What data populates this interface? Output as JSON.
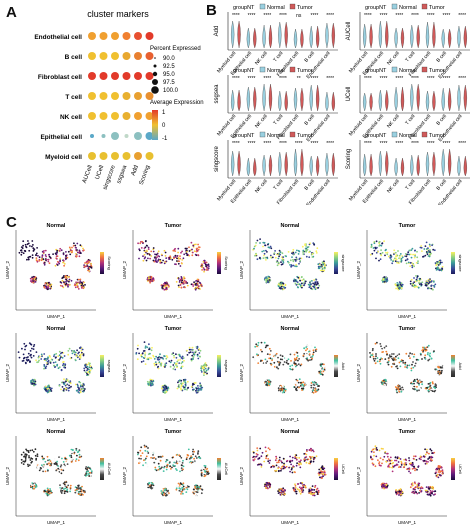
{
  "panels": {
    "A": {
      "letter": "A",
      "title": "cluster markers",
      "rows": [
        "Endothelial cell",
        "B cell",
        "Fibroblast cell",
        "T cell",
        "NK cell",
        "Epithelial cell",
        "Myeloid cell"
      ],
      "cols": [
        "AUCell",
        "UCell",
        "singscore",
        "ssgsea",
        "Add",
        "Scoring"
      ],
      "legend_pct": {
        "title": "Percent Expressed",
        "values": [
          "90.0",
          "92.5",
          "95.0",
          "97.5",
          "100.0"
        ]
      },
      "legend_expr": {
        "title": "Average Expression",
        "ticks": [
          "1",
          "0",
          "-1"
        ]
      }
    },
    "B": {
      "letter": "B",
      "legend_title": "groupNT",
      "legend_items": [
        "Normal",
        "Tumor"
      ],
      "plots": [
        {
          "ylabel": "Add",
          "sig": [
            "****",
            "****",
            "****",
            "****",
            "ns",
            "****"
          ]
        },
        {
          "ylabel": "AUCell",
          "sig": [
            "****",
            "****",
            "****",
            "****",
            "****",
            "****"
          ]
        },
        {
          "ylabel": "ssgsea",
          "sig": [
            "****",
            "****",
            "****",
            "****",
            "**",
            "****"
          ]
        },
        {
          "ylabel": "UCell",
          "sig": [
            "****",
            "****",
            "****",
            "****",
            "****",
            "****"
          ]
        },
        {
          "ylabel": "singscore",
          "sig": [
            "****",
            "****",
            "****",
            "****",
            "****",
            "****"
          ]
        },
        {
          "ylabel": "Scoring",
          "sig": [
            "****",
            "****",
            "****",
            "****",
            "****",
            "****"
          ]
        }
      ],
      "xcats": [
        "Myeloid cell",
        "Epithelial cell",
        "NK cell",
        "T cell",
        "Fibroblast cell",
        "B cell",
        "Endothelial cell"
      ]
    },
    "C": {
      "letter": "C",
      "rows": [
        [
          {
            "title": "Normal",
            "legend": "Scoring"
          },
          {
            "title": "Tumor",
            "legend": "Scoring"
          },
          {
            "title": "Normal",
            "legend": "singscore"
          },
          {
            "title": "Tumor",
            "legend": "singscore"
          }
        ],
        [
          {
            "title": "Normal",
            "legend": "ssgsea"
          },
          {
            "title": "Tumor",
            "legend": "ssgsea"
          },
          {
            "title": "Normal",
            "legend": "Add"
          },
          {
            "title": "Tumor",
            "legend": "Add"
          }
        ],
        [
          {
            "title": "Normal",
            "legend": "AUCell"
          },
          {
            "title": "Tumor",
            "legend": "AUCell"
          },
          {
            "title": "Normal",
            "legend": "UCell"
          },
          {
            "title": "Tumor",
            "legend": "UCell"
          }
        ]
      ],
      "xlabel": "UMAP_1",
      "ylabel": "UMAP_2"
    }
  },
  "colors": {
    "expr_high": "#e23a2a",
    "expr_mid": "#f0c030",
    "expr_low": "#5aa8c8",
    "normal": "#9ad0e0",
    "tumor": "#d05a5a"
  }
}
